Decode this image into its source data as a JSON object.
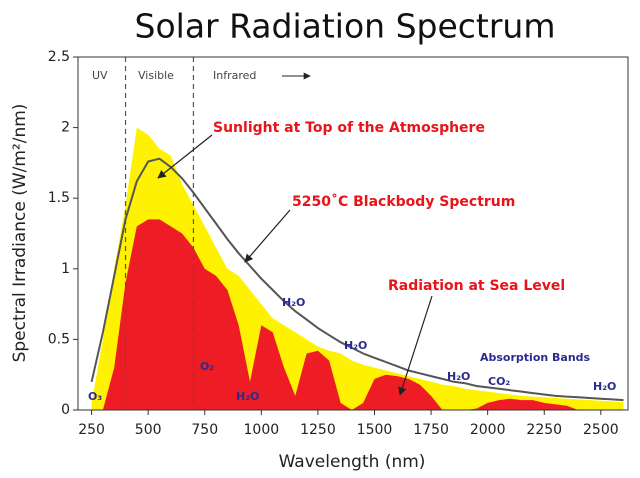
{
  "chart_data": {
    "type": "area",
    "title": "Solar Radiation Spectrum",
    "x_label": "Wavelength (nm)",
    "y_label": "Spectral Irradiance (W/m²/nm)",
    "x": [
      250,
      300,
      350,
      400,
      450,
      500,
      550,
      600,
      650,
      700,
      750,
      800,
      850,
      900,
      950,
      1000,
      1050,
      1100,
      1150,
      1200,
      1250,
      1300,
      1350,
      1400,
      1450,
      1500,
      1550,
      1600,
      1650,
      1700,
      1750,
      1800,
      1850,
      1900,
      1950,
      2000,
      2050,
      2100,
      2150,
      2200,
      2250,
      2300,
      2350,
      2400,
      2450,
      2500,
      2550,
      2600
    ],
    "series": [
      {
        "style": "area",
        "color": "#fff200",
        "values": [
          0.05,
          0.5,
          1.0,
          1.45,
          2.0,
          1.95,
          1.85,
          1.8,
          1.6,
          1.45,
          1.3,
          1.15,
          1.0,
          0.95,
          0.85,
          0.75,
          0.65,
          0.6,
          0.55,
          0.5,
          0.45,
          0.42,
          0.4,
          0.35,
          0.32,
          0.3,
          0.28,
          0.26,
          0.24,
          0.22,
          0.2,
          0.18,
          0.17,
          0.15,
          0.14,
          0.13,
          0.12,
          0.11,
          0.1,
          0.095,
          0.09,
          0.085,
          0.08,
          0.075,
          0.07,
          0.065,
          0.06,
          0.055
        ]
      },
      {
        "style": "area",
        "color": "#ee1c24",
        "values": [
          0,
          0,
          0.3,
          0.9,
          1.3,
          1.35,
          1.35,
          1.3,
          1.25,
          1.15,
          1.0,
          0.95,
          0.85,
          0.6,
          0.2,
          0.6,
          0.55,
          0.3,
          0.1,
          0.4,
          0.42,
          0.35,
          0.05,
          0,
          0.05,
          0.22,
          0.25,
          0.24,
          0.22,
          0.18,
          0.1,
          0,
          0,
          0,
          0.01,
          0.05,
          0.07,
          0.08,
          0.07,
          0.07,
          0.05,
          0.04,
          0.03,
          0,
          0,
          0,
          0,
          0
        ]
      },
      {
        "style": "line",
        "color": "#555555",
        "values": [
          0.2,
          0.55,
          0.95,
          1.35,
          1.62,
          1.76,
          1.78,
          1.72,
          1.64,
          1.54,
          1.43,
          1.32,
          1.21,
          1.11,
          1.02,
          0.93,
          0.85,
          0.77,
          0.7,
          0.64,
          0.58,
          0.53,
          0.48,
          0.44,
          0.4,
          0.37,
          0.34,
          0.31,
          0.28,
          0.26,
          0.24,
          0.22,
          0.2,
          0.19,
          0.17,
          0.16,
          0.15,
          0.14,
          0.13,
          0.12,
          0.11,
          0.1,
          0.095,
          0.09,
          0.085,
          0.08,
          0.075,
          0.07
        ]
      }
    ],
    "xlim": [
      190,
      2620
    ],
    "ylim": [
      0,
      2.5
    ],
    "xticks": [
      250,
      500,
      750,
      1000,
      1250,
      1500,
      1750,
      2000,
      2250,
      2500
    ],
    "yticks": [
      0,
      0.5,
      1,
      1.5,
      2,
      2.5
    ],
    "region_bounds": [
      400,
      700
    ],
    "region_labels": [
      "UV",
      "Visible",
      "Infrared"
    ],
    "annotations": [
      "Sunlight at Top of the Atmosphere",
      "5250˚C Blackbody Spectrum",
      "Radiation at Sea Level",
      "Absorption Bands"
    ],
    "absorption_labels": [
      "O₃",
      "O₂",
      "H₂O",
      "H₂O",
      "H₂O",
      "H₂O",
      "CO₂",
      "H₂O"
    ]
  }
}
